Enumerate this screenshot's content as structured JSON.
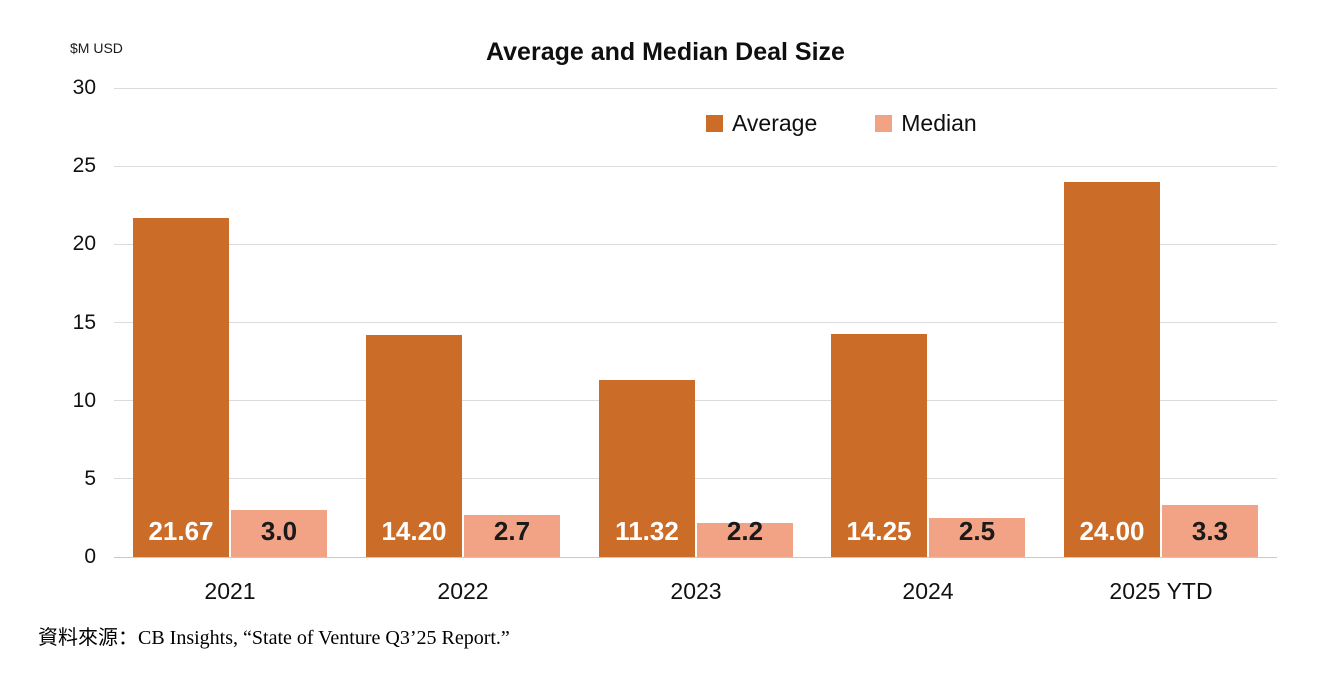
{
  "chart": {
    "title": "Average and Median Deal Size",
    "axis_unit_label": "$M USD",
    "source": "資料來源：CB Insights, “State of Venture Q3’25 Report.”",
    "colors": {
      "average_bar": "#CB6C28",
      "median_bar": "#F2A385",
      "gridline": "#DCDCDC",
      "baseline": "#C9C9C9"
    }
  },
  "chart_data": {
    "type": "bar",
    "title": "Average and Median Deal Size",
    "xlabel": "",
    "ylabel": "$M USD",
    "ylim": [
      0,
      30
    ],
    "y_tick_step": 5,
    "y_tick_labels": [
      "0",
      "5",
      "10",
      "15",
      "20",
      "25",
      "30"
    ],
    "grid": true,
    "legend_position": "top-right",
    "categories": [
      "2021",
      "2022",
      "2023",
      "2024",
      "2025 YTD"
    ],
    "series": [
      {
        "name": "Average",
        "color": "#CB6C28",
        "values": [
          21.67,
          14.2,
          11.32,
          14.25,
          24.0
        ],
        "labels": [
          "21.67",
          "14.20",
          "11.32",
          "14.25",
          "24.00"
        ],
        "label_color": "#FFFFFF"
      },
      {
        "name": "Median",
        "color": "#F2A385",
        "values": [
          3.0,
          2.7,
          2.2,
          2.5,
          3.3
        ],
        "labels": [
          "3.0",
          "2.7",
          "2.2",
          "2.5",
          "3.3"
        ],
        "label_color": "#1A1A1A"
      }
    ]
  }
}
